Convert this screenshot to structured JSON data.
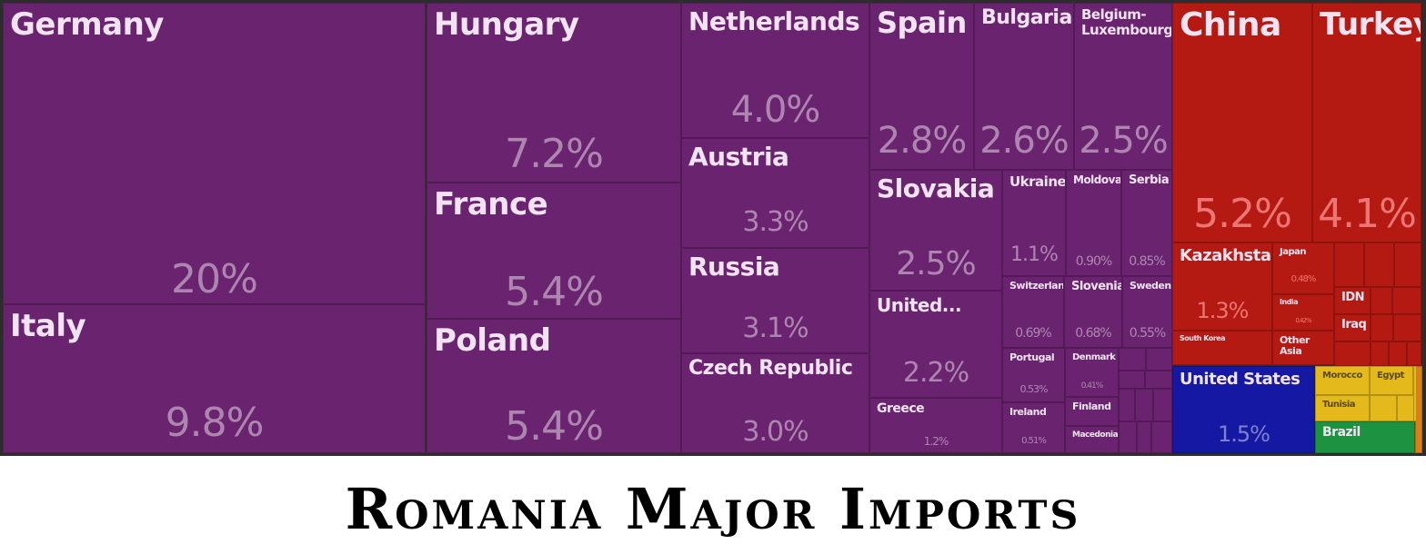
{
  "title": "Romania Major Imports",
  "colors": {
    "europe": "#6a236f",
    "asia": "#b51a12",
    "north_america": "#1518a2",
    "africa": "#e3b91c",
    "south_america": "#1d9342",
    "oceania": "#d9801a"
  },
  "chart_data": {
    "type": "treemap",
    "title": "Romania Major Imports",
    "unit": "%",
    "items": [
      {
        "name": "Germany",
        "value_label": "20%",
        "value": 20,
        "region": "europe"
      },
      {
        "name": "Italy",
        "value_label": "9.8%",
        "value": 9.8,
        "region": "europe"
      },
      {
        "name": "Hungary",
        "value_label": "7.2%",
        "value": 7.2,
        "region": "europe"
      },
      {
        "name": "France",
        "value_label": "5.4%",
        "value": 5.4,
        "region": "europe"
      },
      {
        "name": "Poland",
        "value_label": "5.4%",
        "value": 5.4,
        "region": "europe"
      },
      {
        "name": "Netherlands",
        "value_label": "4.0%",
        "value": 4.0,
        "region": "europe"
      },
      {
        "name": "Austria",
        "value_label": "3.3%",
        "value": 3.3,
        "region": "europe"
      },
      {
        "name": "Russia",
        "value_label": "3.1%",
        "value": 3.1,
        "region": "europe"
      },
      {
        "name": "Czech Republic",
        "value_label": "3.0%",
        "value": 3.0,
        "region": "europe"
      },
      {
        "name": "Spain",
        "value_label": "2.8%",
        "value": 2.8,
        "region": "europe"
      },
      {
        "name": "Bulgaria",
        "value_label": "2.6%",
        "value": 2.6,
        "region": "europe"
      },
      {
        "name": "Belgium-\nLuxembourg",
        "value_label": "2.5%",
        "value": 2.5,
        "region": "europe"
      },
      {
        "name": "Slovakia",
        "value_label": "2.5%",
        "value": 2.5,
        "region": "europe"
      },
      {
        "name": "United...",
        "value_label": "2.2%",
        "value": 2.2,
        "region": "europe"
      },
      {
        "name": "Greece",
        "value_label": "1.2%",
        "value": 1.2,
        "region": "europe"
      },
      {
        "name": "Ukraine",
        "value_label": "1.1%",
        "value": 1.1,
        "region": "europe"
      },
      {
        "name": "Moldova",
        "value_label": "0.90%",
        "value": 0.9,
        "region": "europe"
      },
      {
        "name": "Serbia",
        "value_label": "0.85%",
        "value": 0.85,
        "region": "europe"
      },
      {
        "name": "Switzerland",
        "value_label": "0.69%",
        "value": 0.69,
        "region": "europe"
      },
      {
        "name": "Slovenia",
        "value_label": "0.68%",
        "value": 0.68,
        "region": "europe"
      },
      {
        "name": "Sweden",
        "value_label": "0.55%",
        "value": 0.55,
        "region": "europe"
      },
      {
        "name": "Portugal",
        "value_label": "0.53%",
        "value": 0.53,
        "region": "europe"
      },
      {
        "name": "Denmark",
        "value_label": "0.41%",
        "value": 0.41,
        "region": "europe"
      },
      {
        "name": "Ireland",
        "value_label": "0.51%",
        "value": 0.51,
        "region": "europe"
      },
      {
        "name": "Finland",
        "value_label": "",
        "value": null,
        "region": "europe"
      },
      {
        "name": "Macedonia",
        "value_label": "",
        "value": null,
        "region": "europe"
      },
      {
        "name": "China",
        "value_label": "5.2%",
        "value": 5.2,
        "region": "asia"
      },
      {
        "name": "Turkey",
        "value_label": "4.1%",
        "value": 4.1,
        "region": "asia"
      },
      {
        "name": "Kazakhstan",
        "value_label": "1.3%",
        "value": 1.3,
        "region": "asia"
      },
      {
        "name": "Japan",
        "value_label": "0.48%",
        "value": 0.48,
        "region": "asia"
      },
      {
        "name": "India",
        "value_label": "0.42%",
        "value": 0.42,
        "region": "asia"
      },
      {
        "name": "South Korea",
        "value_label": "",
        "value": null,
        "region": "asia"
      },
      {
        "name": "Other Asia",
        "value_label": "",
        "value": null,
        "region": "asia"
      },
      {
        "name": "IDN",
        "value_label": "",
        "value": null,
        "region": "asia"
      },
      {
        "name": "Iraq",
        "value_label": "",
        "value": null,
        "region": "asia"
      },
      {
        "name": "United States",
        "value_label": "1.5%",
        "value": 1.5,
        "region": "north_america"
      },
      {
        "name": "Morocco",
        "value_label": "",
        "value": null,
        "region": "africa"
      },
      {
        "name": "Egypt",
        "value_label": "",
        "value": null,
        "region": "africa"
      },
      {
        "name": "Tunisia",
        "value_label": "",
        "value": null,
        "region": "africa"
      },
      {
        "name": "Brazil",
        "value_label": "",
        "value": null,
        "region": "south_america"
      },
      {
        "name": "",
        "value_label": "",
        "value": null,
        "region": "oceania"
      }
    ]
  }
}
